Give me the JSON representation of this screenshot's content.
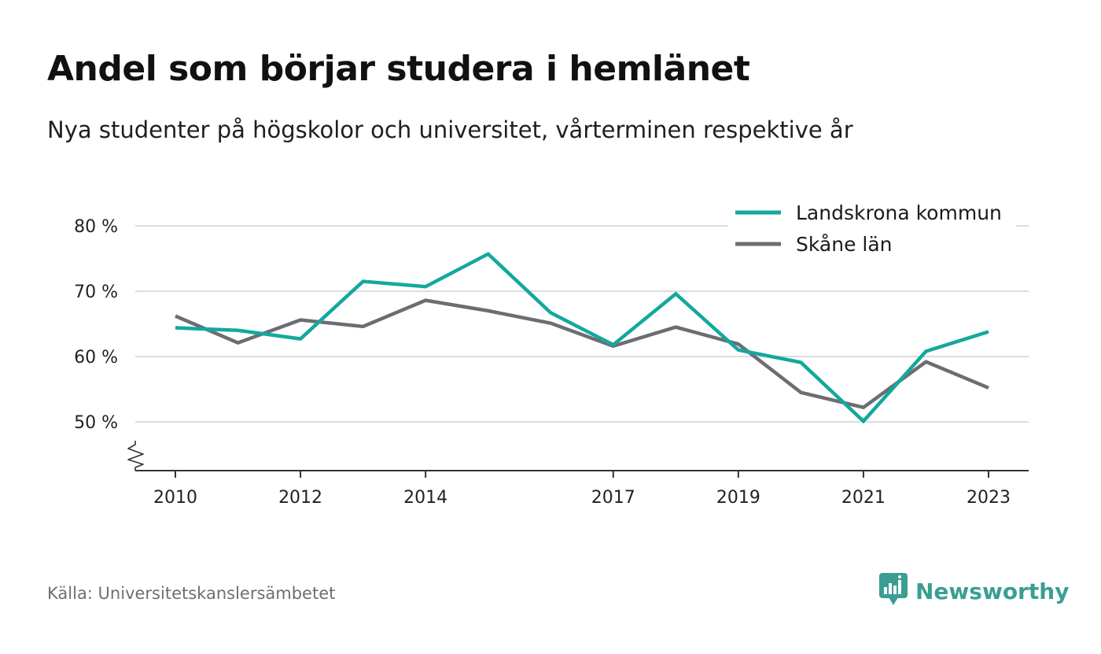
{
  "title": "Andel som börjar studera i hemlänet",
  "subtitle": "Nya studenter på högskolor och universitet, vårterminen respektive år",
  "source": "Källa: Universitetskanslersämbetet",
  "brand": {
    "name": "Newsworthy",
    "icon": "newsworthy-logo-icon",
    "color": "#3a9e93"
  },
  "chart_data": {
    "type": "line",
    "x": [
      2010,
      2011,
      2012,
      2013,
      2014,
      2015,
      2016,
      2017,
      2018,
      2019,
      2020,
      2021,
      2022,
      2023
    ],
    "x_tick_labels": [
      "2010",
      "2012",
      "2014",
      "2017",
      "2019",
      "2021",
      "2023"
    ],
    "y_tick_values": [
      50,
      60,
      70,
      80
    ],
    "y_tick_labels": [
      "50 %",
      "60 %",
      "70 %",
      "80 %"
    ],
    "ylim": [
      42.5,
      80
    ],
    "y_axis_break": true,
    "grid": true,
    "legend_position": "top-right",
    "series": [
      {
        "name": "Landskrona kommun",
        "color": "#13a89e",
        "values": [
          64.4,
          64.0,
          62.7,
          71.5,
          70.7,
          75.7,
          66.7,
          61.8,
          69.6,
          61.0,
          59.1,
          50.1,
          60.8,
          63.8
        ]
      },
      {
        "name": "Skåne län",
        "color": "#6e6c73",
        "values": [
          66.2,
          62.1,
          65.6,
          64.6,
          68.6,
          67.0,
          65.1,
          61.6,
          64.5,
          61.9,
          54.5,
          52.2,
          59.2,
          55.2
        ]
      }
    ]
  }
}
